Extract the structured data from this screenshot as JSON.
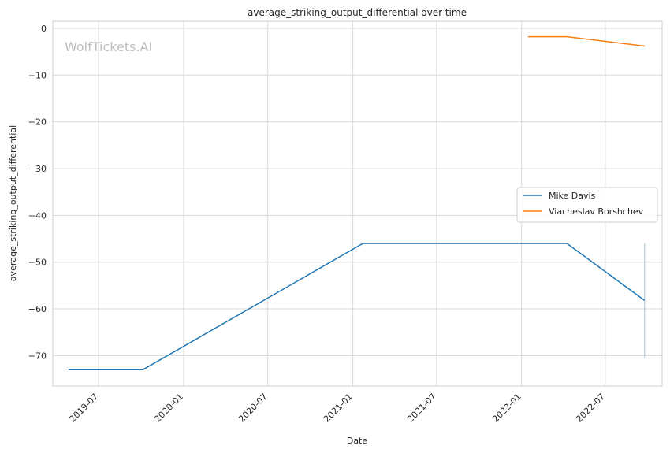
{
  "chart_data": {
    "type": "line",
    "title": "average_striking_output_differential over time",
    "xlabel": "Date",
    "ylabel": "average_striking_output_differential",
    "watermark": "WolfTickets.AI",
    "x_ticks": [
      "2019-07",
      "2020-01",
      "2020-07",
      "2021-01",
      "2021-07",
      "2022-01",
      "2022-07"
    ],
    "y_ticks": [
      0,
      -10,
      -20,
      -30,
      -40,
      -50,
      -60,
      -70
    ],
    "ylim": [
      -76.5,
      1.5
    ],
    "xlim": [
      "2019-03-24",
      "2022-11-01"
    ],
    "grid": true,
    "legend_position": "center-right",
    "series": [
      {
        "name": "Mike Davis",
        "color": "#1f77b4",
        "points": [
          {
            "x": "2019-04-27",
            "y": -73
          },
          {
            "x": "2019-10-05",
            "y": -73
          },
          {
            "x": "2021-01-23",
            "y": -46
          },
          {
            "x": "2022-04-09",
            "y": -46
          },
          {
            "x": "2022-09-24",
            "y": -58.2
          }
        ]
      },
      {
        "name": "Viacheslav Borshchev",
        "color": "#ff7f0e",
        "points": [
          {
            "x": "2022-01-15",
            "y": -1.8
          },
          {
            "x": "2022-04-09",
            "y": -1.8
          },
          {
            "x": "2022-09-24",
            "y": -3.8
          }
        ]
      }
    ],
    "error_band": {
      "x": "2022-09-24",
      "y_low": -70.4,
      "y_high": -46
    }
  }
}
